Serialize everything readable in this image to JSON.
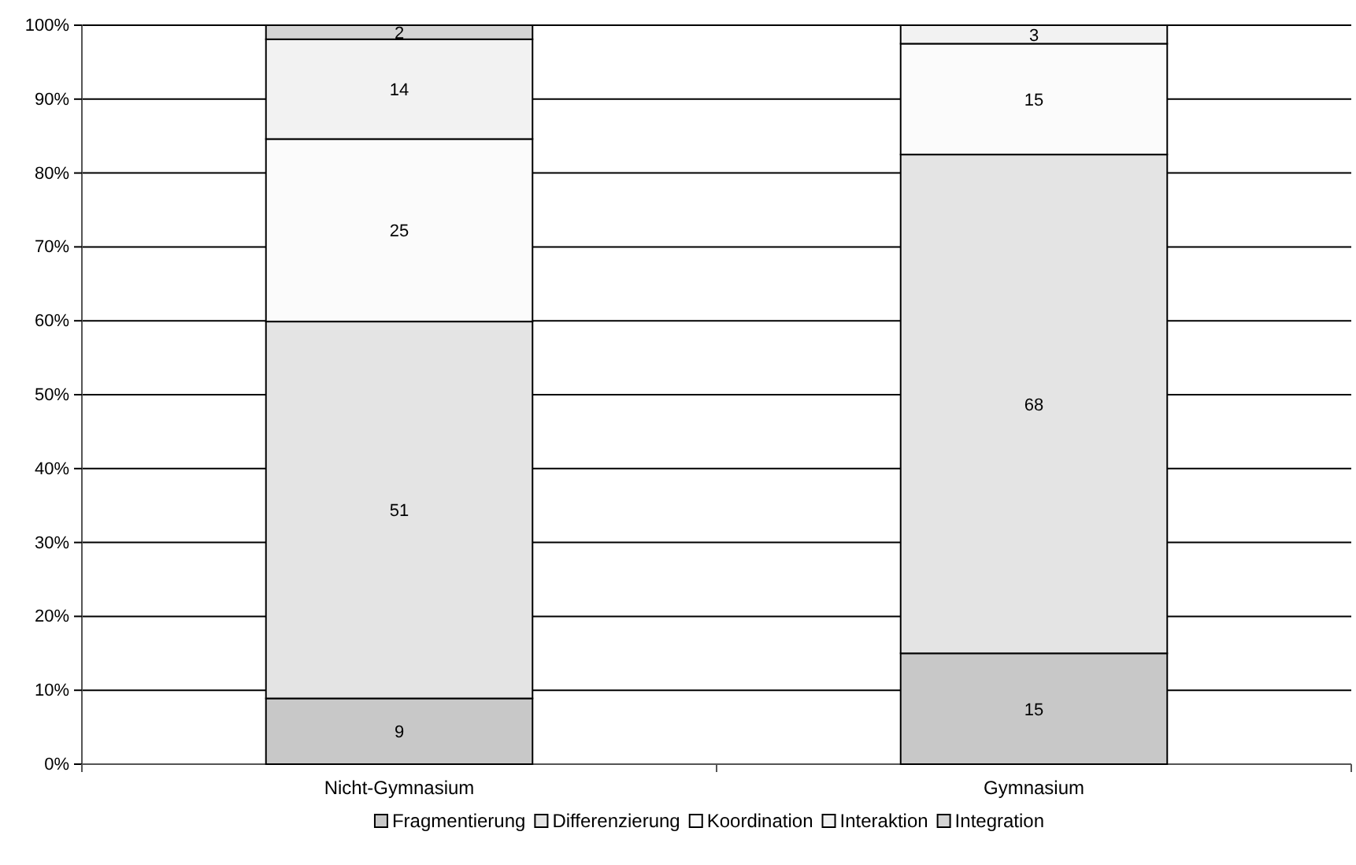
{
  "chart_data": {
    "type": "bar",
    "stacked": true,
    "categories": [
      "Nicht-Gymnasium",
      "Gymnasium"
    ],
    "series": [
      {
        "name": "Fragmentierung",
        "color": "#c8c8c8",
        "values": [
          8.9,
          15
        ],
        "value_labels": [
          "9",
          "15"
        ]
      },
      {
        "name": "Differenzierung",
        "color": "#e4e4e4",
        "values": [
          51,
          67.5
        ],
        "value_labels": [
          "51",
          "68"
        ]
      },
      {
        "name": "Koordination",
        "color": "#fbfbfb",
        "values": [
          24.7,
          15
        ],
        "value_labels": [
          "25",
          "15"
        ]
      },
      {
        "name": "Interaktion",
        "color": "#f2f2f2",
        "values": [
          13.5,
          2.5
        ],
        "value_labels": [
          "14",
          "3"
        ]
      },
      {
        "name": "Integration",
        "color": "#d4d4d4",
        "values": [
          1.9,
          null
        ],
        "value_labels": [
          "2",
          null
        ]
      }
    ],
    "ylim": [
      0,
      100
    ],
    "yticks": [
      {
        "value": 0,
        "label": "0%"
      },
      {
        "value": 10,
        "label": "10%"
      },
      {
        "value": 20,
        "label": "20%"
      },
      {
        "value": 30,
        "label": "30%"
      },
      {
        "value": 40,
        "label": "40%"
      },
      {
        "value": 50,
        "label": "50%"
      },
      {
        "value": 60,
        "label": "60%"
      },
      {
        "value": 70,
        "label": "70%"
      },
      {
        "value": 80,
        "label": "80%"
      },
      {
        "value": 90,
        "label": "90%"
      },
      {
        "value": 100,
        "label": "100%"
      }
    ],
    "grid": "y",
    "legend": "bottom"
  }
}
